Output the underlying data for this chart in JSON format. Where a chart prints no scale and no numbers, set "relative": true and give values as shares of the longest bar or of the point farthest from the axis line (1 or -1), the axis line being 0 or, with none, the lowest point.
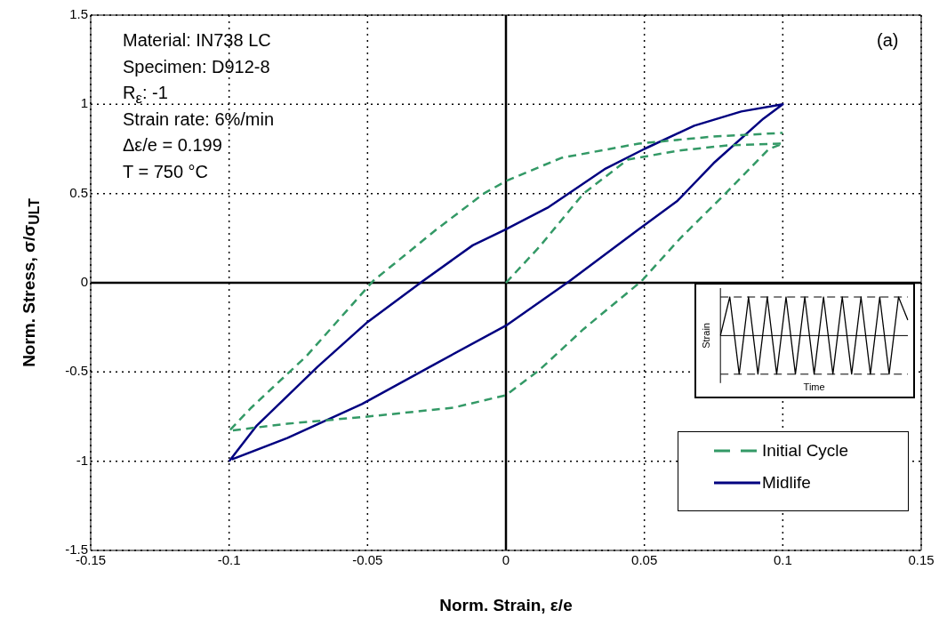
{
  "chart_data": [
    {
      "type": "line",
      "xlabel": "Norm. Strain, ε/e",
      "ylabel": "Norm. Stress, σ/σ$_{ULT}$",
      "xlim": [
        -0.15,
        0.15
      ],
      "xticks": [
        -0.15,
        -0.1,
        -0.05,
        0,
        0.05,
        0.1,
        0.15
      ],
      "ylim": [
        -1.5,
        1.5
      ],
      "yticks": [
        -1.5,
        -1,
        -0.5,
        0,
        0.5,
        1,
        1.5
      ],
      "grid": true,
      "legend": "bottom right",
      "marker": "none",
      "annotations": [
        "Material: IN738 LC",
        "Specimen: D912-8",
        "R$_{ε}$:  -1",
        "Strain rate: 6%/min",
        "Δε/e = 0.199",
        "T = 750 °C",
        "(a)"
      ],
      "series": [
        {
          "name": "Initial Cycle",
          "color": "#339966",
          "line_style": "dashed",
          "x": [
            0,
            0.012,
            0.028,
            0.044,
            0.062,
            0.08,
            0.1,
            0.095,
            0.078,
            0.063,
            0.049,
            0.028,
            0.012,
            0,
            -0.019,
            -0.05,
            -0.079,
            -0.1,
            -0.092,
            -0.072,
            -0.048,
            -0.025,
            -0.008,
            0,
            0.02,
            0.048,
            0.075,
            0.1
          ],
          "values": [
            0,
            0.2,
            0.5,
            0.69,
            0.74,
            0.77,
            0.78,
            0.75,
            0.48,
            0.25,
            0.01,
            -0.26,
            -0.49,
            -0.63,
            -0.7,
            -0.75,
            -0.79,
            -0.83,
            -0.7,
            -0.41,
            0.01,
            0.3,
            0.5,
            0.57,
            0.7,
            0.78,
            0.82,
            0.84
          ]
        },
        {
          "name": "Midlife",
          "color": "#000080",
          "line_style": "solid",
          "x": [
            -0.1,
            -0.09,
            -0.068,
            -0.05,
            -0.03,
            -0.012,
            0,
            0.015,
            0.036,
            0.05,
            0.068,
            0.085,
            0.1,
            0.093,
            0.075,
            0.062,
            0.048,
            0.023,
            0,
            -0.025,
            -0.052,
            -0.079,
            -0.099
          ],
          "values": [
            -1,
            -0.8,
            -0.47,
            -0.22,
            0.01,
            0.21,
            0.3,
            0.42,
            0.64,
            0.75,
            0.88,
            0.96,
            1,
            0.92,
            0.67,
            0.46,
            0.3,
            0.01,
            -0.24,
            -0.45,
            -0.68,
            -0.87,
            -0.99
          ]
        }
      ]
    },
    {
      "type": "line",
      "relative": true,
      "xlabel": "Time",
      "ylabel": "Strain",
      "marker": "none",
      "line_style": "solid",
      "categories": [
        null,
        null,
        null,
        null,
        null,
        null,
        null,
        null,
        null,
        null,
        null,
        null,
        null,
        null,
        null,
        null,
        null,
        null,
        null,
        null,
        null
      ],
      "values": [
        0,
        1,
        -1,
        1,
        -1,
        1,
        -1,
        1,
        -1,
        1,
        -1,
        1,
        -1,
        1,
        -1,
        1,
        -1,
        1,
        -1,
        1,
        0.4
      ],
      "color": "#000000",
      "ref_lines": [
        {
          "axis": "y",
          "value": 1,
          "line_style": "dashed"
        },
        {
          "axis": "y",
          "value": -1,
          "line_style": "dashed"
        }
      ]
    }
  ]
}
